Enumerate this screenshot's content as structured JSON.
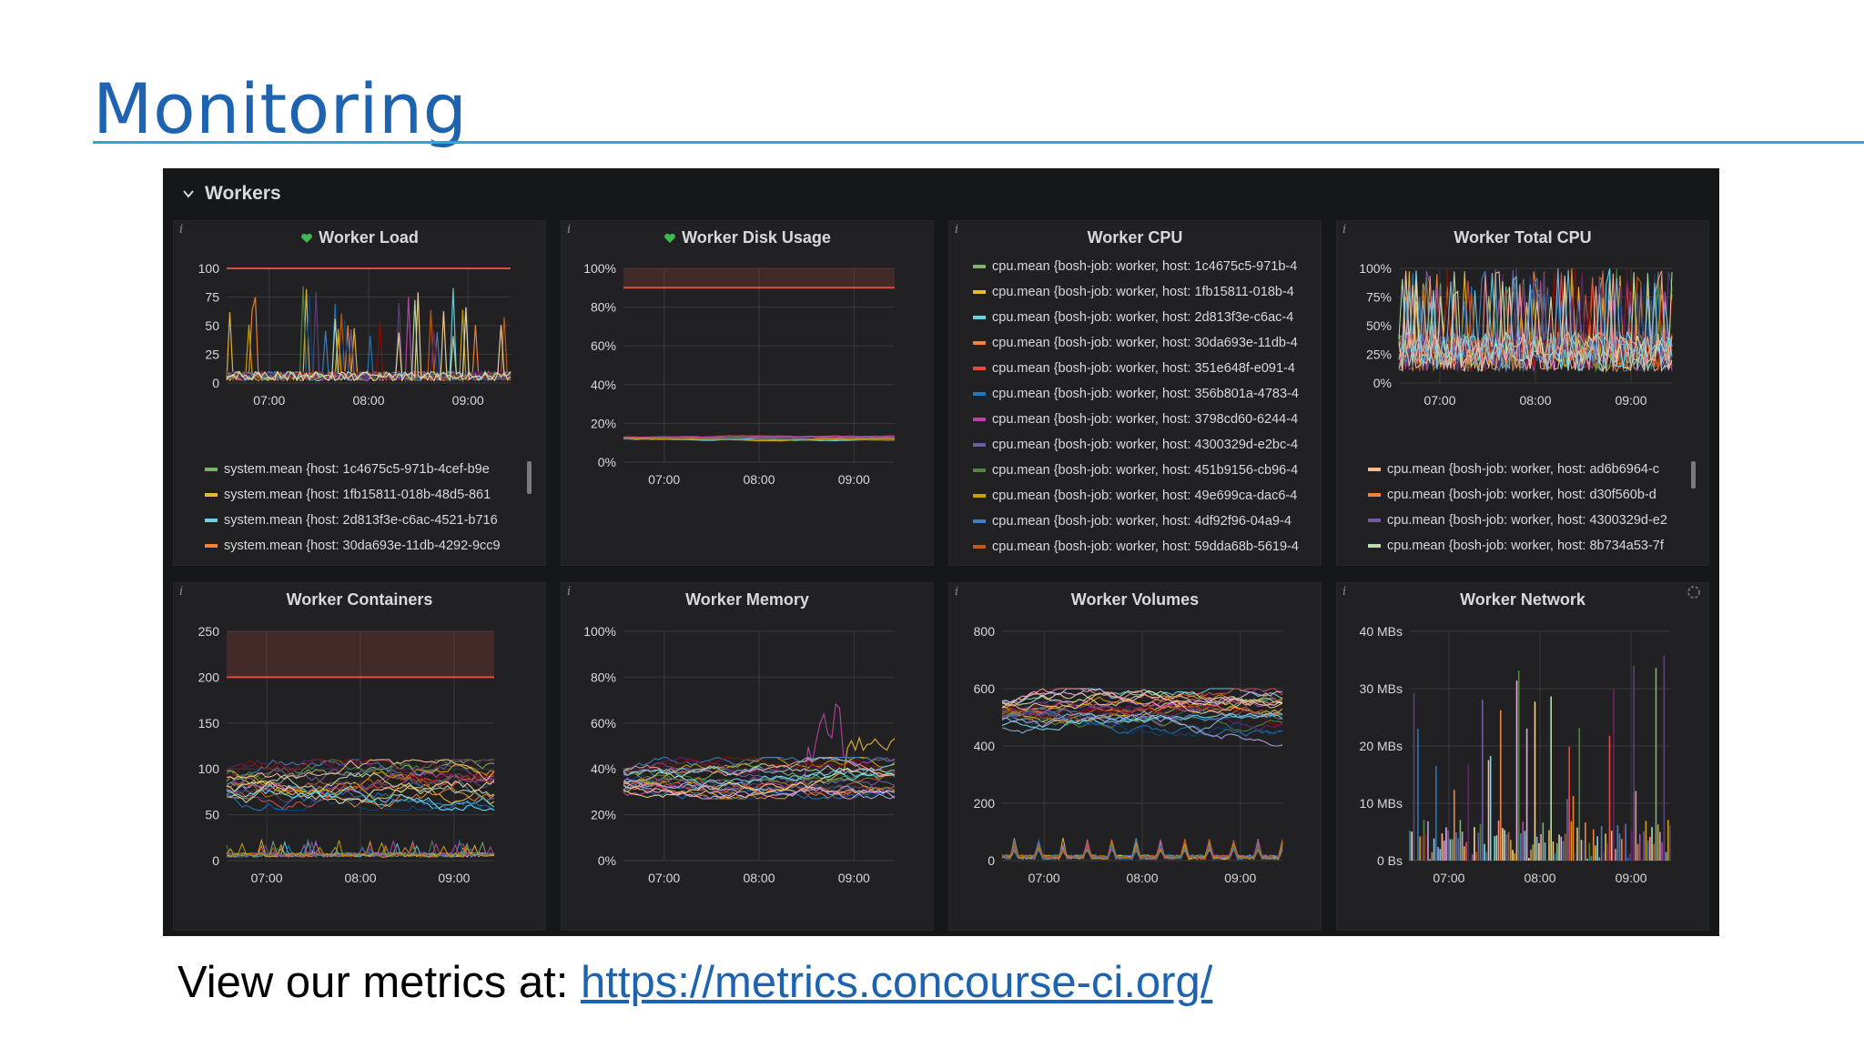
{
  "slide": {
    "title": "Monitoring",
    "footer_prefix": "View our metrics at: ",
    "footer_link": "https://metrics.concourse-ci.org/",
    "accent_color": "#1e63b0",
    "rule_color": "#2aa6e0"
  },
  "dashboard": {
    "row_title": "Workers",
    "row_icon": "chevron-down-icon",
    "background": "#161719",
    "panel_background": "#212124",
    "threshold_color": "#e24d42",
    "info_glyph": "i"
  },
  "panels": [
    {
      "id": "worker-load",
      "title": "Worker Load",
      "status_icon": "heart-icon",
      "y_ticks": [
        "100",
        "75",
        "50",
        "25",
        "0"
      ],
      "x_ticks": [
        "07:00",
        "08:00",
        "09:00"
      ],
      "legend": [
        {
          "label": "system.mean {host: 1c4675c5-971b-4cef-b9e",
          "color": "#7eb26d"
        },
        {
          "label": "system.mean {host: 1fb15811-018b-48d5-861",
          "color": "#eab839"
        },
        {
          "label": "system.mean {host: 2d813f3e-c6ac-4521-b716",
          "color": "#6ed0e0"
        },
        {
          "label": "system.mean {host: 30da693e-11db-4292-9cc9",
          "color": "#ef843c"
        }
      ]
    },
    {
      "id": "worker-disk-usage",
      "title": "Worker Disk Usage",
      "status_icon": "heart-icon",
      "y_ticks": [
        "100%",
        "80%",
        "60%",
        "40%",
        "20%",
        "0%"
      ],
      "x_ticks": [
        "07:00",
        "08:00",
        "09:00"
      ],
      "legend": []
    },
    {
      "id": "worker-cpu",
      "title": "Worker CPU",
      "legend": [
        {
          "label": "cpu.mean {bosh-job: worker, host: 1c4675c5-971b-4",
          "color": "#7eb26d"
        },
        {
          "label": "cpu.mean {bosh-job: worker, host: 1fb15811-018b-4",
          "color": "#eab839"
        },
        {
          "label": "cpu.mean {bosh-job: worker, host: 2d813f3e-c6ac-4",
          "color": "#6ed0e0"
        },
        {
          "label": "cpu.mean {bosh-job: worker, host: 30da693e-11db-4",
          "color": "#ef843c"
        },
        {
          "label": "cpu.mean {bosh-job: worker, host: 351e648f-e091-4",
          "color": "#e24d42"
        },
        {
          "label": "cpu.mean {bosh-job: worker, host: 356b801a-4783-4",
          "color": "#1f78c1"
        },
        {
          "label": "cpu.mean {bosh-job: worker, host: 3798cd60-6244-4",
          "color": "#ba43a9"
        },
        {
          "label": "cpu.mean {bosh-job: worker, host: 4300329d-e2bc-4",
          "color": "#705da0"
        },
        {
          "label": "cpu.mean {bosh-job: worker, host: 451b9156-cb96-4",
          "color": "#508642"
        },
        {
          "label": "cpu.mean {bosh-job: worker, host: 49e699ca-dac6-4",
          "color": "#cca300"
        },
        {
          "label": "cpu.mean {bosh-job: worker, host: 4df92f96-04a9-4",
          "color": "#447ebc"
        },
        {
          "label": "cpu.mean {bosh-job: worker, host: 59dda68b-5619-4",
          "color": "#c15c17"
        }
      ]
    },
    {
      "id": "worker-total-cpu",
      "title": "Worker Total CPU",
      "y_ticks": [
        "100%",
        "75%",
        "50%",
        "25%",
        "0%"
      ],
      "x_ticks": [
        "07:00",
        "08:00",
        "09:00"
      ],
      "legend": [
        {
          "label": "cpu.mean {bosh-job: worker, host: ad6b6964-c",
          "color": "#f9ba8f"
        },
        {
          "label": "cpu.mean {bosh-job: worker, host: d30f560b-d",
          "color": "#ef843c"
        },
        {
          "label": "cpu.mean {bosh-job: worker, host: 4300329d-e2",
          "color": "#705da0"
        },
        {
          "label": "cpu.mean {bosh-job: worker, host: 8b734a53-7f",
          "color": "#b7dbab"
        }
      ]
    },
    {
      "id": "worker-containers",
      "title": "Worker Containers",
      "y_ticks": [
        "250",
        "200",
        "150",
        "100",
        "50",
        "0"
      ],
      "x_ticks": [
        "07:00",
        "08:00",
        "09:00"
      ],
      "legend": []
    },
    {
      "id": "worker-memory",
      "title": "Worker Memory",
      "y_ticks": [
        "100%",
        "80%",
        "60%",
        "40%",
        "20%",
        "0%"
      ],
      "x_ticks": [
        "07:00",
        "08:00",
        "09:00"
      ],
      "legend": []
    },
    {
      "id": "worker-volumes",
      "title": "Worker Volumes",
      "y_ticks": [
        "800",
        "600",
        "400",
        "200",
        "0"
      ],
      "x_ticks": [
        "07:00",
        "08:00",
        "09:00"
      ],
      "legend": []
    },
    {
      "id": "worker-network",
      "title": "Worker Network",
      "status_icon": "spinner-icon",
      "y_ticks": [
        "40 MBs",
        "30 MBs",
        "20 MBs",
        "10 MBs",
        "0 Bs"
      ],
      "x_ticks": [
        "07:00",
        "08:00",
        "09:00"
      ],
      "legend": []
    }
  ],
  "chart_data": [
    {
      "type": "line",
      "title": "Worker Load",
      "ylim": [
        0,
        100
      ],
      "x_ticks": [
        "07:00",
        "08:00",
        "09:00"
      ],
      "threshold": 100,
      "series_colors": [
        "#7eb26d",
        "#eab839",
        "#6ed0e0",
        "#ef843c"
      ],
      "note_values": "many hosts mostly near 0-10 with spikes; max spikes ~90"
    }
  ]
}
